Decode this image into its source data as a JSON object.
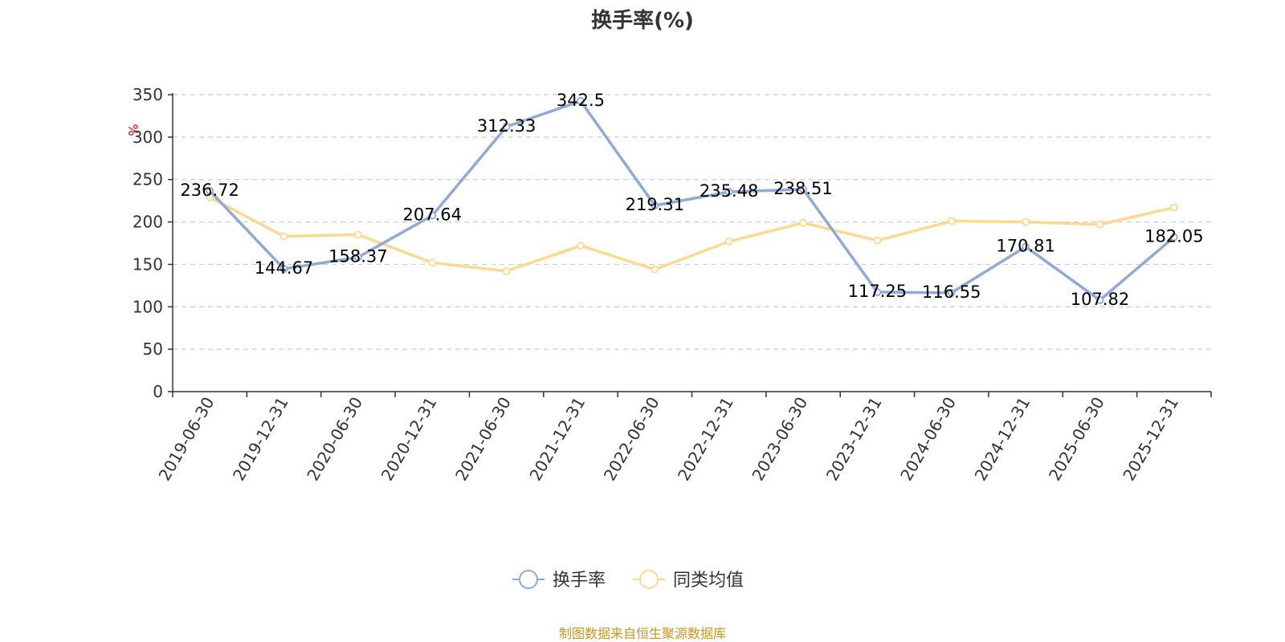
{
  "chart_data": {
    "type": "line",
    "title": "换手率(%)",
    "ylabel": "%",
    "ylim": [
      0,
      350
    ],
    "yticks": [
      0,
      50,
      100,
      150,
      200,
      250,
      300,
      350
    ],
    "grid": true,
    "legend_position": "bottom",
    "categories": [
      "2019-06-30",
      "2019-12-31",
      "2020-06-30",
      "2020-12-31",
      "2021-06-30",
      "2021-12-31",
      "2022-06-30",
      "2022-12-31",
      "2023-06-30",
      "2023-12-31",
      "2024-06-30",
      "2024-12-31",
      "2025-06-30",
      "2025-12-31"
    ],
    "series": [
      {
        "name": "换手率",
        "color": "#8faad8",
        "values": [
          236.72,
          144.67,
          158.37,
          207.64,
          312.33,
          342.5,
          219.31,
          235.48,
          238.51,
          117.25,
          116.55,
          170.81,
          107.82,
          182.05
        ],
        "labels": [
          "236.72",
          "144.67",
          "158.37",
          "207.64",
          "312.33",
          "342.5",
          "219.31",
          "235.48",
          "238.51",
          "117.25",
          "116.55",
          "170.81",
          "107.82",
          "182.05"
        ]
      },
      {
        "name": "同类均值",
        "color": "#fdd990",
        "values": [
          229,
          183,
          185,
          152,
          142,
          172,
          144,
          177,
          199,
          178,
          201,
          200,
          197,
          217
        ]
      }
    ]
  },
  "source_note": "制图数据来自恒生聚源数据库"
}
